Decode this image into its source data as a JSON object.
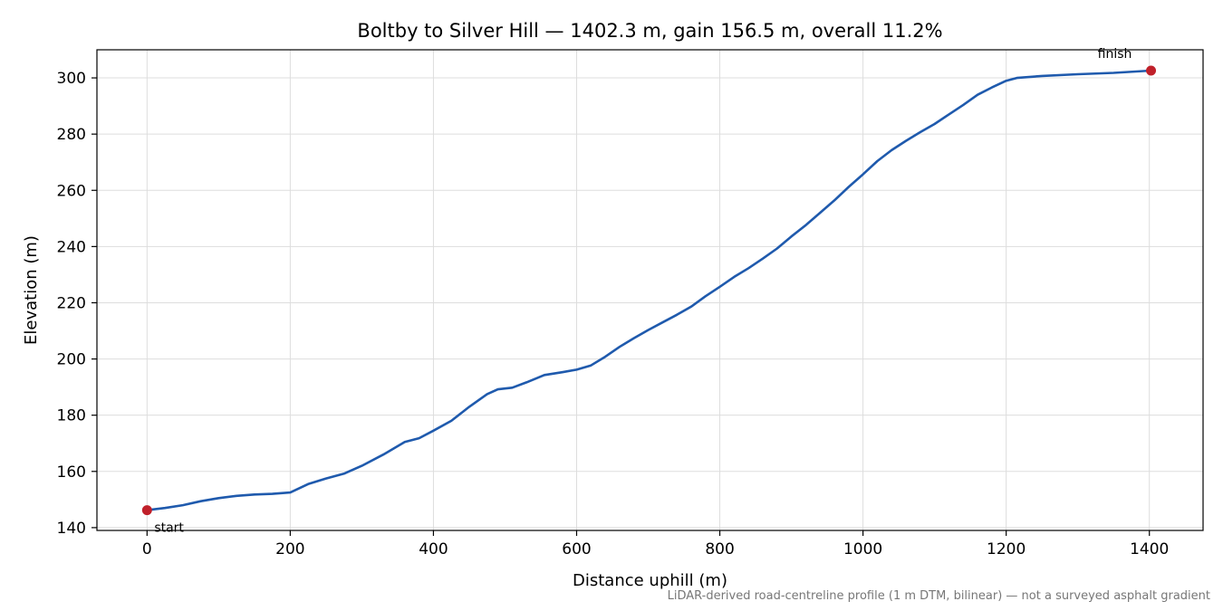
{
  "chart_data": {
    "type": "line",
    "title": "Boltby to Silver Hill — 1402.3 m, gain 156.5 m, overall 11.2%",
    "xlabel": "Distance uphill (m)",
    "ylabel": "Elevation (m)",
    "xlim": [
      -70,
      1475
    ],
    "ylim": [
      139,
      310
    ],
    "xticks": [
      0,
      200,
      400,
      600,
      800,
      1000,
      1200,
      1400
    ],
    "yticks": [
      140,
      160,
      180,
      200,
      220,
      240,
      260,
      280,
      300
    ],
    "grid": true,
    "line_color": "#1f5aad",
    "marker_color": "#c0202a",
    "series": [
      {
        "x": [
          0,
          25,
          50,
          75,
          100,
          125,
          150,
          175,
          200,
          225,
          250,
          275,
          300,
          330,
          360,
          380,
          400,
          425,
          450,
          475,
          490,
          510,
          530,
          555,
          580,
          600,
          620,
          640,
          660,
          680,
          700,
          720,
          740,
          760,
          780,
          800,
          820,
          840,
          860,
          880,
          900,
          920,
          940,
          960,
          980,
          1000,
          1020,
          1040,
          1060,
          1080,
          1100,
          1120,
          1140,
          1160,
          1180,
          1200,
          1215,
          1250,
          1300,
          1350,
          1402.3
        ],
        "y": [
          146.2,
          147.0,
          148.0,
          149.4,
          150.5,
          151.3,
          151.8,
          152.0,
          152.5,
          155.5,
          157.5,
          159.2,
          162.0,
          166.0,
          170.5,
          171.8,
          174.5,
          178.0,
          183.0,
          187.5,
          189.2,
          189.8,
          191.7,
          194.3,
          195.3,
          196.2,
          197.7,
          200.8,
          204.3,
          207.4,
          210.3,
          213.0,
          215.7,
          218.6,
          222.3,
          225.7,
          229.2,
          232.3,
          235.7,
          239.3,
          243.6,
          247.6,
          252.0,
          256.4,
          261.2,
          265.7,
          270.4,
          274.3,
          277.6,
          280.7,
          283.6,
          287.0,
          290.4,
          294.0,
          296.6,
          299.0,
          300.0,
          300.7,
          301.3,
          301.8,
          302.6
        ]
      }
    ],
    "annotations": [
      {
        "text": "start",
        "x": 0,
        "y": 146.2
      },
      {
        "text": "finish",
        "x": 1402.3,
        "y": 302.6
      }
    ],
    "footnote": "LiDAR-derived road-centreline profile (1 m DTM, bilinear) — not a surveyed asphalt gradient"
  }
}
